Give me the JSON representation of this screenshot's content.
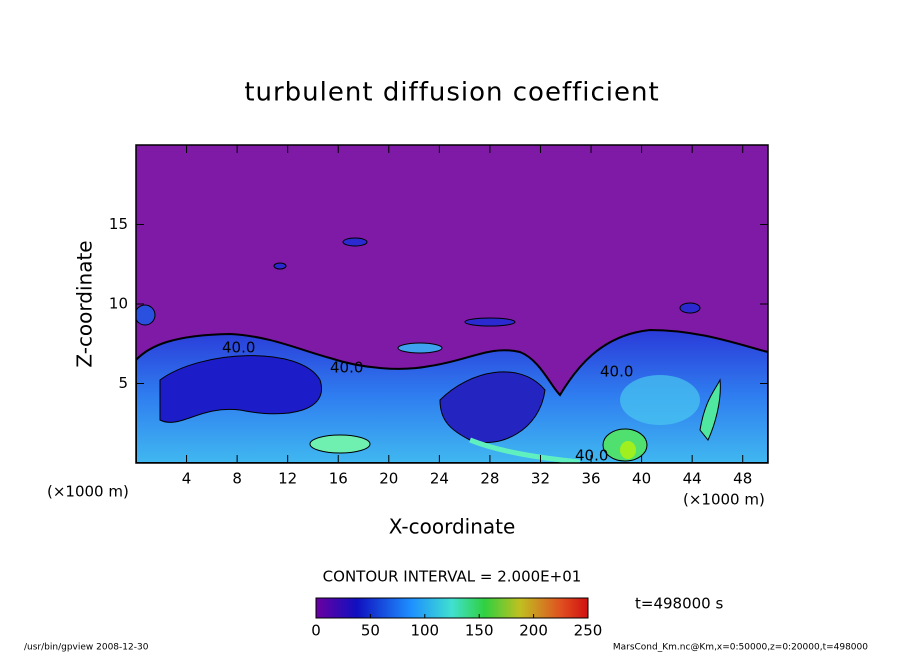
{
  "chart_data": {
    "type": "contour",
    "title": "turbulent diffusion coefficient",
    "xlabel": "X-coordinate",
    "ylabel": "Z-coordinate",
    "x_unit_label": "(×1000 m)",
    "y_unit_label": "(×1000 m)",
    "xlim": [
      0,
      50
    ],
    "xticks": [
      4,
      8,
      12,
      16,
      20,
      24,
      28,
      32,
      36,
      40,
      44,
      48
    ],
    "ylim": [
      0,
      20
    ],
    "yticks": [
      5,
      10,
      15
    ],
    "contour_interval": "CONTOUR INTERVAL = 2.000E+01",
    "contour_label": "40.0",
    "colorbar": {
      "lim": [
        0,
        250
      ],
      "ticks": [
        0,
        50,
        100,
        150,
        200,
        250
      ]
    },
    "time_label": "t=498000 s",
    "footer_left": "/usr/bin/gpview   2008-12-30",
    "footer_right": "MarsCond_Km.nc@Km,x=0:50000,z=0:20000,t=498000"
  }
}
